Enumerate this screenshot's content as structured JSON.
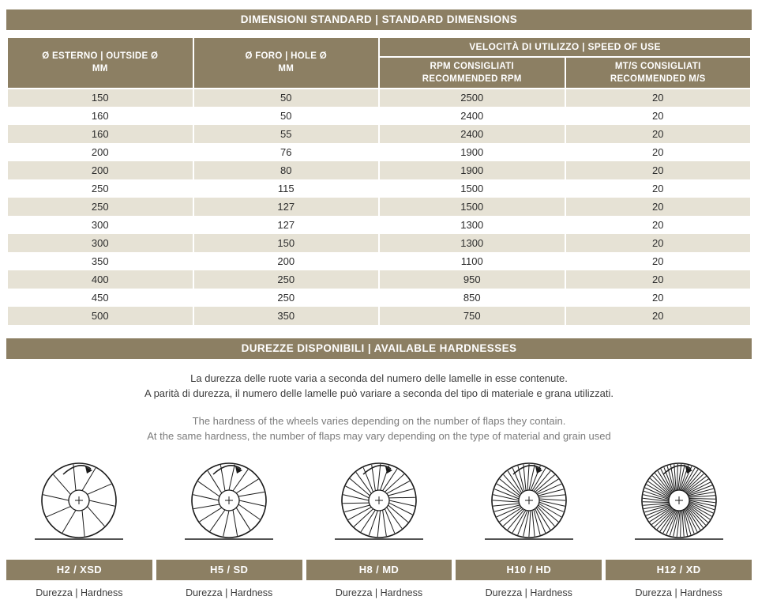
{
  "colors": {
    "accent": "#8c7f63",
    "row_alt": "#e6e2d5",
    "header_text": "#ffffff",
    "text_dark": "#3c3c3c",
    "text_light": "#7b7b7b"
  },
  "dimensions": {
    "title": "DIMENSIONI STANDARD | STANDARD DIMENSIONS",
    "col_outside": "Ø ESTERNO | OUTSIDE Ø\nMM",
    "col_hole": "Ø FORO | HOLE Ø\nMM",
    "col_speed_group": "VELOCITÀ DI UTILIZZO | SPEED OF USE",
    "col_rpm": "RPM CONSIGLIATI\nRECOMMENDED RPM",
    "col_ms": "MT/S CONSIGLIATI\nRECOMMENDED M/S",
    "rows": [
      [
        "150",
        "50",
        "2500",
        "20"
      ],
      [
        "160",
        "50",
        "2400",
        "20"
      ],
      [
        "160",
        "55",
        "2400",
        "20"
      ],
      [
        "200",
        "76",
        "1900",
        "20"
      ],
      [
        "200",
        "80",
        "1900",
        "20"
      ],
      [
        "250",
        "115",
        "1500",
        "20"
      ],
      [
        "250",
        "127",
        "1500",
        "20"
      ],
      [
        "300",
        "127",
        "1300",
        "20"
      ],
      [
        "300",
        "150",
        "1300",
        "20"
      ],
      [
        "350",
        "200",
        "1100",
        "20"
      ],
      [
        "400",
        "250",
        "950",
        "20"
      ],
      [
        "450",
        "250",
        "850",
        "20"
      ],
      [
        "500",
        "350",
        "750",
        "20"
      ]
    ]
  },
  "hardness": {
    "title": "DUREZZE DISPONIBILI | AVAILABLE HARDNESSES",
    "text_it_1": "La durezza delle ruote varia a seconda del numero delle lamelle in esse contenute.",
    "text_it_2": "A parità di durezza, il numero delle lamelle può variare a seconda del tipo di materiale e grana utilizzati.",
    "text_en_1": "The hardness of the wheels varies depending on the number of flaps they contain.",
    "text_en_2": "At the same hardness, the number of flaps may vary depending on the type of material and grain used",
    "items": [
      {
        "code": "H2 / XSD",
        "label": "Durezza | Hardness",
        "flaps": 10
      },
      {
        "code": "H5 / SD",
        "label": "Durezza | Hardness",
        "flaps": 16
      },
      {
        "code": "H8 / MD",
        "label": "Durezza | Hardness",
        "flaps": 26
      },
      {
        "code": "H10 / HD",
        "label": "Durezza | Hardness",
        "flaps": 40
      },
      {
        "code": "H12 / XD",
        "label": "Durezza | Hardness",
        "flaps": 64
      }
    ]
  }
}
